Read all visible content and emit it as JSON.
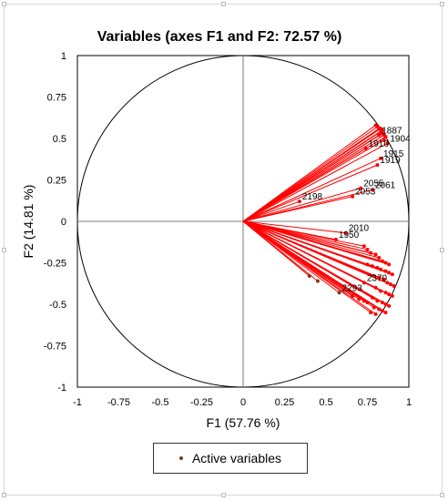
{
  "chart_data": {
    "type": "scatter",
    "title": "Variables (axes F1 and F2: 72.57 %)",
    "xlabel": "F1 (57.76 %)",
    "ylabel": "F2 (14.81 %)",
    "xlim": [
      -1,
      1
    ],
    "ylim": [
      -1,
      1
    ],
    "xticks": [
      "-1",
      "-0.75",
      "-0.5",
      "-0.25",
      "0",
      "0.25",
      "0.5",
      "0.75",
      "1"
    ],
    "yticks": [
      "1",
      "0.75",
      "0.5",
      "0.25",
      "0",
      "-0.25",
      "-0.5",
      "-0.75",
      "-1"
    ],
    "unit_circle": true,
    "legend": {
      "position": "bottom",
      "entries": [
        "Active variables"
      ]
    },
    "colors": {
      "vector": "#ff0000",
      "point": "#7a3b10",
      "axis": "#000000",
      "circle": "#000000"
    },
    "series": [
      {
        "name": "Active variables",
        "points": [
          {
            "x": 0.82,
            "y": 0.52,
            "label": "1887"
          },
          {
            "x": 0.87,
            "y": 0.47,
            "label": "1904"
          },
          {
            "x": 0.74,
            "y": 0.44,
            "label": "1910"
          },
          {
            "x": 0.83,
            "y": 0.38,
            "label": "1915"
          },
          {
            "x": 0.81,
            "y": 0.34,
            "label": "1919"
          },
          {
            "x": 0.71,
            "y": 0.2,
            "label": "2055"
          },
          {
            "x": 0.78,
            "y": 0.19,
            "label": "2061"
          },
          {
            "x": 0.66,
            "y": 0.15,
            "label": "2053"
          },
          {
            "x": 0.34,
            "y": 0.12,
            "label": "2198"
          },
          {
            "x": 0.62,
            "y": -0.07,
            "label": "2010"
          },
          {
            "x": 0.56,
            "y": -0.11,
            "label": "1950"
          },
          {
            "x": 0.73,
            "y": -0.37,
            "label": "2370"
          },
          {
            "x": 0.58,
            "y": -0.43,
            "label": "2293"
          },
          {
            "x": 0.4,
            "y": -0.33,
            "label": ""
          },
          {
            "x": 0.45,
            "y": -0.36,
            "label": ""
          },
          {
            "x": 0.66,
            "y": -0.45,
            "label": ""
          },
          {
            "x": 0.7,
            "y": -0.47,
            "label": ""
          },
          {
            "x": 0.73,
            "y": -0.48,
            "label": ""
          },
          {
            "x": 0.75,
            "y": -0.49,
            "label": ""
          },
          {
            "x": 0.8,
            "y": 0.58,
            "label": ""
          },
          {
            "x": 0.81,
            "y": 0.57,
            "label": ""
          },
          {
            "x": 0.82,
            "y": 0.56,
            "label": ""
          },
          {
            "x": 0.83,
            "y": 0.56,
            "label": ""
          },
          {
            "x": 0.84,
            "y": 0.55,
            "label": ""
          },
          {
            "x": 0.83,
            "y": 0.54,
            "label": ""
          },
          {
            "x": 0.84,
            "y": 0.53,
            "label": ""
          },
          {
            "x": 0.85,
            "y": 0.52,
            "label": ""
          },
          {
            "x": 0.86,
            "y": 0.51,
            "label": ""
          },
          {
            "x": 0.85,
            "y": 0.49,
            "label": ""
          },
          {
            "x": 0.73,
            "y": -0.15,
            "label": ""
          },
          {
            "x": 0.75,
            "y": -0.17,
            "label": ""
          },
          {
            "x": 0.77,
            "y": -0.19,
            "label": ""
          },
          {
            "x": 0.8,
            "y": -0.2,
            "label": ""
          },
          {
            "x": 0.82,
            "y": -0.22,
            "label": ""
          },
          {
            "x": 0.84,
            "y": -0.24,
            "label": ""
          },
          {
            "x": 0.86,
            "y": -0.25,
            "label": ""
          },
          {
            "x": 0.88,
            "y": -0.26,
            "label": ""
          },
          {
            "x": 0.75,
            "y": -0.26,
            "label": ""
          },
          {
            "x": 0.78,
            "y": -0.27,
            "label": ""
          },
          {
            "x": 0.81,
            "y": -0.28,
            "label": ""
          },
          {
            "x": 0.83,
            "y": -0.29,
            "label": ""
          },
          {
            "x": 0.86,
            "y": -0.3,
            "label": ""
          },
          {
            "x": 0.88,
            "y": -0.31,
            "label": ""
          },
          {
            "x": 0.9,
            "y": -0.32,
            "label": ""
          },
          {
            "x": 0.79,
            "y": -0.33,
            "label": ""
          },
          {
            "x": 0.82,
            "y": -0.34,
            "label": ""
          },
          {
            "x": 0.85,
            "y": -0.35,
            "label": ""
          },
          {
            "x": 0.87,
            "y": -0.37,
            "label": ""
          },
          {
            "x": 0.89,
            "y": -0.38,
            "label": ""
          },
          {
            "x": 0.91,
            "y": -0.39,
            "label": ""
          },
          {
            "x": 0.8,
            "y": -0.4,
            "label": ""
          },
          {
            "x": 0.83,
            "y": -0.42,
            "label": ""
          },
          {
            "x": 0.86,
            "y": -0.43,
            "label": ""
          },
          {
            "x": 0.88,
            "y": -0.44,
            "label": ""
          },
          {
            "x": 0.9,
            "y": -0.45,
            "label": ""
          },
          {
            "x": 0.78,
            "y": -0.46,
            "label": ""
          },
          {
            "x": 0.81,
            "y": -0.48,
            "label": ""
          },
          {
            "x": 0.84,
            "y": -0.49,
            "label": ""
          },
          {
            "x": 0.86,
            "y": -0.5,
            "label": ""
          },
          {
            "x": 0.88,
            "y": -0.51,
            "label": ""
          },
          {
            "x": 0.79,
            "y": -0.52,
            "label": ""
          },
          {
            "x": 0.82,
            "y": -0.53,
            "label": ""
          },
          {
            "x": 0.84,
            "y": -0.54,
            "label": ""
          },
          {
            "x": 0.86,
            "y": -0.55,
            "label": ""
          },
          {
            "x": 0.77,
            "y": -0.55,
            "label": ""
          },
          {
            "x": 0.8,
            "y": -0.56,
            "label": ""
          }
        ]
      }
    ]
  }
}
